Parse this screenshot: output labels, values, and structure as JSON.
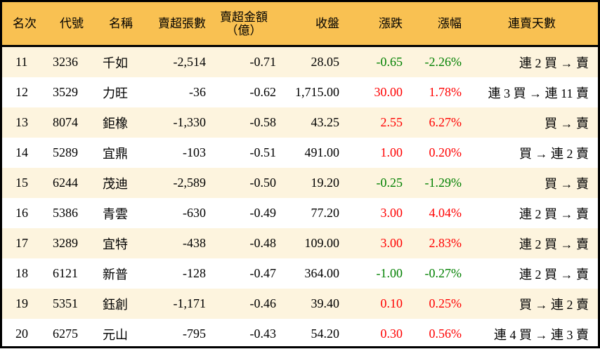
{
  "header": {
    "rank": "名次",
    "code": "代號",
    "name": "名稱",
    "net_sell_lots": "賣超張數",
    "net_sell_amount": "賣超金額",
    "net_sell_amount_unit": "（億）",
    "close": "收盤",
    "change": "漲跌",
    "change_pct": "漲幅",
    "streak": "連賣天數"
  },
  "colors": {
    "header_bg": "#F9C152",
    "row_alt_bg": "#FDF4DE",
    "up": "#FF0000",
    "down": "#008000",
    "border": "#000000"
  },
  "rows": [
    {
      "rank": "11",
      "code": "3236",
      "name": "千如",
      "lots": "-2,514",
      "amount": "-0.71",
      "close": "28.05",
      "change": "-0.65",
      "pct": "-2.26%",
      "dir": "down",
      "streak": "連 2 買 → 賣"
    },
    {
      "rank": "12",
      "code": "3529",
      "name": "力旺",
      "lots": "-36",
      "amount": "-0.62",
      "close": "1,715.00",
      "change": "30.00",
      "pct": "1.78%",
      "dir": "up",
      "streak": "連 3 買 → 連 11 賣"
    },
    {
      "rank": "13",
      "code": "8074",
      "name": "鉅橡",
      "lots": "-1,330",
      "amount": "-0.58",
      "close": "43.25",
      "change": "2.55",
      "pct": "6.27%",
      "dir": "up",
      "streak": "買 → 賣"
    },
    {
      "rank": "14",
      "code": "5289",
      "name": "宜鼎",
      "lots": "-103",
      "amount": "-0.51",
      "close": "491.00",
      "change": "1.00",
      "pct": "0.20%",
      "dir": "up",
      "streak": "買 → 連 2 賣"
    },
    {
      "rank": "15",
      "code": "6244",
      "name": "茂迪",
      "lots": "-2,589",
      "amount": "-0.50",
      "close": "19.20",
      "change": "-0.25",
      "pct": "-1.29%",
      "dir": "down",
      "streak": "買 → 賣"
    },
    {
      "rank": "16",
      "code": "5386",
      "name": "青雲",
      "lots": "-630",
      "amount": "-0.49",
      "close": "77.20",
      "change": "3.00",
      "pct": "4.04%",
      "dir": "up",
      "streak": "連 2 買 → 賣"
    },
    {
      "rank": "17",
      "code": "3289",
      "name": "宜特",
      "lots": "-438",
      "amount": "-0.48",
      "close": "109.00",
      "change": "3.00",
      "pct": "2.83%",
      "dir": "up",
      "streak": "連 2 買 → 賣"
    },
    {
      "rank": "18",
      "code": "6121",
      "name": "新普",
      "lots": "-128",
      "amount": "-0.47",
      "close": "364.00",
      "change": "-1.00",
      "pct": "-0.27%",
      "dir": "down",
      "streak": "連 2 買 → 賣"
    },
    {
      "rank": "19",
      "code": "5351",
      "name": "鈺創",
      "lots": "-1,171",
      "amount": "-0.46",
      "close": "39.40",
      "change": "0.10",
      "pct": "0.25%",
      "dir": "up",
      "streak": "買 → 連 2 賣"
    },
    {
      "rank": "20",
      "code": "6275",
      "name": "元山",
      "lots": "-795",
      "amount": "-0.43",
      "close": "54.20",
      "change": "0.30",
      "pct": "0.56%",
      "dir": "up",
      "streak": "連 4 買 → 連 3 賣"
    }
  ]
}
